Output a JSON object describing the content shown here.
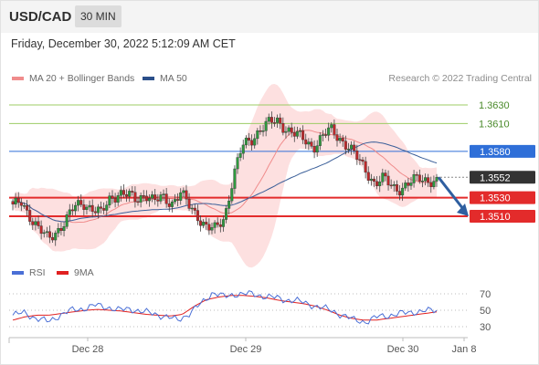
{
  "header": {
    "pair": "USD/CAD",
    "timeframe": "30 MIN"
  },
  "datetime": "Friday, December 30, 2022 5:12:09 AM CET",
  "legend": {
    "ma20": {
      "label": "MA 20 + Bollinger Bands",
      "color": "#f08c8c"
    },
    "ma50": {
      "label": "MA 50",
      "color": "#2b4f8a"
    },
    "rsi": {
      "label": "RSI",
      "color": "#4a6fd6"
    },
    "rsi_ma": {
      "label": "9MA",
      "color": "#e02020"
    }
  },
  "credit": "Research © 2022 Trading Central",
  "chart_data": {
    "type": "candlestick",
    "x_ticks": [
      "Dec 28",
      "Dec 29",
      "Dec 30",
      "Jan 8"
    ],
    "levels": [
      {
        "value": 1.363,
        "label": "1.3630",
        "kind": "resistance",
        "color": "#9ccc65"
      },
      {
        "value": 1.361,
        "label": "1.3610",
        "kind": "resistance",
        "color": "#9ccc65"
      },
      {
        "value": 1.358,
        "label": "1.3580",
        "kind": "pivot",
        "color": "#2f6fd8"
      },
      {
        "value": 1.3552,
        "label": "1.3552",
        "kind": "last_price",
        "color": "#333333"
      },
      {
        "value": 1.353,
        "label": "1.3530",
        "kind": "support",
        "color": "#e32b2b"
      },
      {
        "value": 1.351,
        "label": "1.3510",
        "kind": "support",
        "color": "#e32b2b"
      }
    ],
    "price_anchor": [
      1.352,
      1.3525,
      1.351,
      1.3495,
      1.3485,
      1.3495,
      1.3505,
      1.352,
      1.3525,
      1.3518,
      1.3512,
      1.353,
      1.3535,
      1.3532,
      1.3528,
      1.3535,
      1.3525,
      1.353,
      1.3525,
      1.3535,
      1.352,
      1.351,
      1.3498,
      1.3495,
      1.351,
      1.3555,
      1.3585,
      1.3592,
      1.3605,
      1.361,
      1.3612,
      1.3605,
      1.3598,
      1.3592,
      1.3585,
      1.3595,
      1.3603,
      1.3595,
      1.3585,
      1.3572,
      1.356,
      1.3545,
      1.355,
      1.3542,
      1.354,
      1.3545,
      1.3552,
      1.355,
      1.3545
    ],
    "forecast": {
      "from": 1.3552,
      "to": 1.351
    },
    "rsi": {
      "levels": [
        70,
        50,
        30
      ],
      "rsi_anchor": [
        44,
        47,
        40,
        36,
        44,
        50,
        52,
        56,
        54,
        50,
        52,
        48,
        46,
        42,
        38,
        46,
        58,
        72,
        66,
        70,
        70,
        68,
        66,
        63,
        62,
        58,
        54,
        50,
        44,
        38,
        36,
        42,
        44,
        46,
        48,
        49,
        50
      ],
      "ma_anchor": [
        38,
        42,
        44,
        44,
        46,
        48,
        50,
        51,
        50,
        49,
        47,
        45,
        44,
        43,
        45,
        55,
        63,
        66,
        68,
        68,
        67,
        65,
        62,
        60,
        58,
        55,
        50,
        44,
        40,
        38,
        38,
        40,
        42,
        44,
        46,
        48
      ]
    }
  }
}
